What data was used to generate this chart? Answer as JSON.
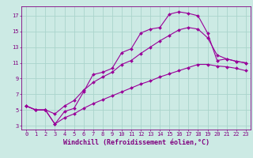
{
  "background_color": "#cceae4",
  "grid_color": "#aad4cc",
  "line_color": "#990099",
  "xlabel": "Windchill (Refroidissement éolien,°C)",
  "xlabel_fontsize": 6,
  "yticks": [
    3,
    5,
    7,
    9,
    11,
    13,
    15,
    17
  ],
  "xticks": [
    0,
    1,
    2,
    3,
    4,
    5,
    6,
    7,
    8,
    9,
    10,
    11,
    12,
    13,
    14,
    15,
    16,
    17,
    18,
    19,
    20,
    21,
    22,
    23
  ],
  "xlim": [
    -0.5,
    23.5
  ],
  "ylim": [
    2.5,
    18.2
  ],
  "line1_x": [
    0,
    1,
    2,
    3,
    4,
    5,
    6,
    7,
    8,
    9,
    10,
    11,
    12,
    13,
    14,
    15,
    16,
    17,
    18,
    19,
    20,
    21,
    22,
    23
  ],
  "line1_y": [
    5.5,
    5.0,
    5.0,
    3.2,
    4.8,
    5.2,
    7.3,
    9.5,
    9.8,
    10.3,
    12.3,
    12.8,
    14.8,
    15.3,
    15.5,
    17.2,
    17.5,
    17.3,
    17.0,
    14.8,
    11.3,
    11.5,
    11.2,
    11.0
  ],
  "line2_x": [
    0,
    1,
    2,
    3,
    4,
    5,
    6,
    7,
    8,
    9,
    10,
    11,
    12,
    13,
    14,
    15,
    16,
    17,
    18,
    19,
    20,
    21,
    22,
    23
  ],
  "line2_y": [
    5.5,
    5.0,
    5.0,
    4.5,
    5.5,
    6.2,
    7.5,
    8.5,
    9.2,
    9.8,
    10.8,
    11.3,
    12.2,
    13.0,
    13.8,
    14.5,
    15.2,
    15.5,
    15.3,
    14.2,
    12.0,
    11.5,
    11.2,
    11.0
  ],
  "line3_x": [
    0,
    1,
    2,
    3,
    4,
    5,
    6,
    7,
    8,
    9,
    10,
    11,
    12,
    13,
    14,
    15,
    16,
    17,
    18,
    19,
    20,
    21,
    22,
    23
  ],
  "line3_y": [
    5.5,
    5.0,
    5.0,
    3.2,
    4.0,
    4.5,
    5.2,
    5.8,
    6.3,
    6.8,
    7.3,
    7.8,
    8.3,
    8.7,
    9.2,
    9.6,
    10.0,
    10.4,
    10.8,
    10.8,
    10.6,
    10.5,
    10.3,
    10.0
  ],
  "marker": "D",
  "markersize": 2.0,
  "linewidth": 0.8,
  "tick_fontsize": 5.0,
  "tick_color": "#800080",
  "spine_color": "#800080"
}
